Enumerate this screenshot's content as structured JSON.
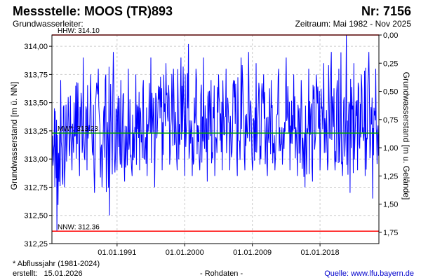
{
  "header": {
    "title": "Messstelle: MOOS (TR)893",
    "number": "Nr: 7156",
    "aquifer": "Grundwasserleiter:",
    "period": "Zeitraum: Mai 1982 - Nov 2025"
  },
  "footer": {
    "note": "* Abflussjahr (1981-2024)",
    "created_label": "erstellt:",
    "created_date": "15.01.2026",
    "data_type": "- Rohdaten -",
    "source": "Quelle: www.lfu.bayern.de"
  },
  "chart_data": {
    "type": "line",
    "ylabel": "Grundwasserstand [m ü. NN]",
    "y2label": "Grundwasserstand [m u. Gelände]",
    "ylim": [
      312.25,
      314.1
    ],
    "y_ticks": [
      "312,25",
      "312,50",
      "312,75",
      "313,00",
      "313,25",
      "313,50",
      "313,75",
      "314,00"
    ],
    "y2_ticks": [
      "1,75",
      "1,50",
      "1,25",
      "1,00",
      "0,75",
      "0,50",
      "0,25",
      "0,00"
    ],
    "x_ticks": [
      "01.01.1991",
      "01.01.2000",
      "01.01.2009",
      "01.01.2018"
    ],
    "xlim": [
      "1982-05",
      "2025-11"
    ],
    "grid": true,
    "reference_lines": [
      {
        "label": "HHW: 314.10",
        "value": 314.1,
        "color": "#ff0000"
      },
      {
        "label": "MW*: 313.23",
        "value": 313.23,
        "color": "#00a000"
      },
      {
        "label": "NNW: 312.36",
        "value": 312.36,
        "color": "#ff0000"
      }
    ],
    "series_color": "#0000ff",
    "series": [
      {
        "x": [
          "1982-05",
          "1983-01",
          "1984-01",
          "1985-01",
          "1986-01",
          "1987-01",
          "1988-01",
          "1989-01",
          "1990-01",
          "1991-01",
          "1992-01",
          "1993-01",
          "1994-01",
          "1995-01",
          "1996-01",
          "1997-01",
          "1998-01",
          "1999-01",
          "2000-01",
          "2001-01",
          "2002-01",
          "2003-01",
          "2004-01",
          "2005-01",
          "2006-01",
          "2007-01",
          "2008-01",
          "2009-01",
          "2010-01",
          "2011-01",
          "2012-01",
          "2013-01",
          "2014-01",
          "2015-01",
          "2016-01",
          "2017-01",
          "2018-01",
          "2019-01",
          "2020-01",
          "2021-01",
          "2022-01",
          "2023-01",
          "2024-01",
          "2025-01",
          "2025-11"
        ],
        "min": [
          312.95,
          312.36,
          312.75,
          312.9,
          312.85,
          312.9,
          312.7,
          312.75,
          312.5,
          312.9,
          312.8,
          312.85,
          312.9,
          312.85,
          312.75,
          312.9,
          312.95,
          312.9,
          312.85,
          312.85,
          312.9,
          312.8,
          312.85,
          312.9,
          312.9,
          312.85,
          312.9,
          312.9,
          312.95,
          312.85,
          312.9,
          312.95,
          312.9,
          312.85,
          312.75,
          312.8,
          312.9,
          312.9,
          312.9,
          312.85,
          312.7,
          312.9,
          312.85,
          312.65,
          313.0
        ],
        "max": [
          313.45,
          313.7,
          313.55,
          313.65,
          313.9,
          313.75,
          313.8,
          313.75,
          313.95,
          313.7,
          313.8,
          313.75,
          313.7,
          313.9,
          313.65,
          313.85,
          313.8,
          313.9,
          314.02,
          313.8,
          313.9,
          313.7,
          313.75,
          313.8,
          313.7,
          313.9,
          313.95,
          313.85,
          313.75,
          313.7,
          313.8,
          313.9,
          313.75,
          313.7,
          313.8,
          313.75,
          313.85,
          313.95,
          313.8,
          314.1,
          313.85,
          313.75,
          313.95,
          313.8,
          313.25
        ]
      }
    ]
  }
}
